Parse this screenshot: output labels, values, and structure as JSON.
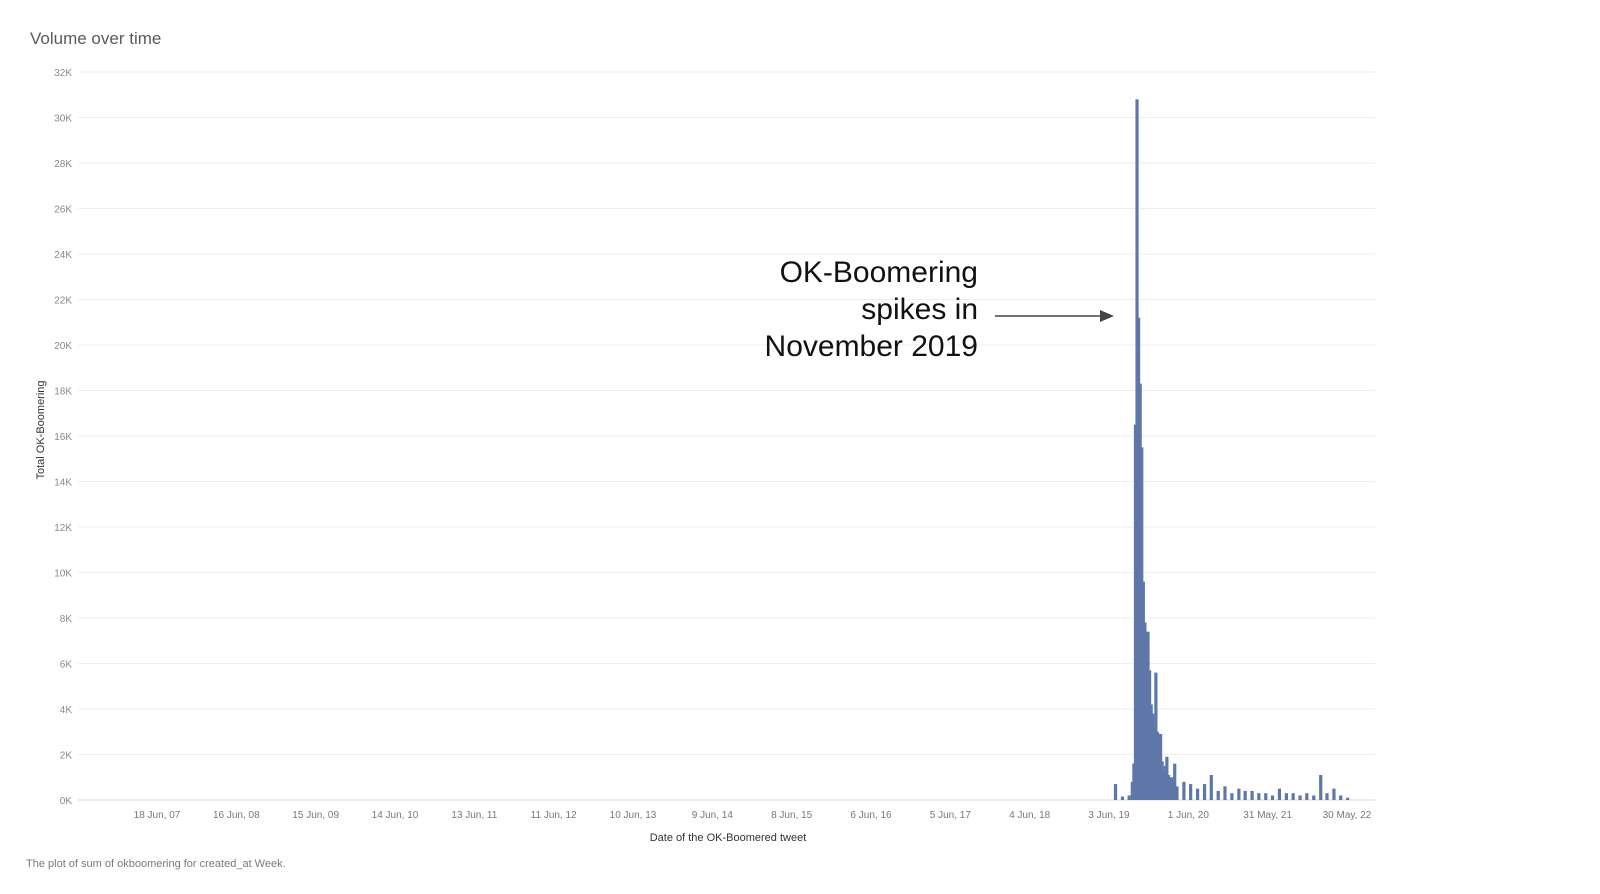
{
  "chart_data": {
    "type": "bar",
    "title": "Volume over time",
    "caption": "The plot of sum of okboomering for created_at Week.",
    "xlabel": "Date of the OK-Boomered tweet",
    "ylabel": "Total OK-Boomering",
    "ylim": [
      0,
      32000
    ],
    "grid": true,
    "bar_color": "#5e77a8",
    "y_ticks": [
      {
        "value": 0,
        "label": "0K"
      },
      {
        "value": 2000,
        "label": "2K"
      },
      {
        "value": 4000,
        "label": "4K"
      },
      {
        "value": 6000,
        "label": "6K"
      },
      {
        "value": 8000,
        "label": "8K"
      },
      {
        "value": 10000,
        "label": "10K"
      },
      {
        "value": 12000,
        "label": "12K"
      },
      {
        "value": 14000,
        "label": "14K"
      },
      {
        "value": 16000,
        "label": "16K"
      },
      {
        "value": 18000,
        "label": "18K"
      },
      {
        "value": 20000,
        "label": "20K"
      },
      {
        "value": 22000,
        "label": "22K"
      },
      {
        "value": 24000,
        "label": "24K"
      },
      {
        "value": 26000,
        "label": "26K"
      },
      {
        "value": 28000,
        "label": "28K"
      },
      {
        "value": 30000,
        "label": "30K"
      },
      {
        "value": 32000,
        "label": "32K"
      }
    ],
    "x_ticks": [
      "18 Jun, 07",
      "16 Jun, 08",
      "15 Jun, 09",
      "14 Jun, 10",
      "13 Jun, 11",
      "11 Jun, 12",
      "10 Jun, 13",
      "9 Jun, 14",
      "8 Jun, 15",
      "6 Jun, 16",
      "5 Jun, 17",
      "4 Jun, 18",
      "3 Jun, 19",
      "1 Jun, 20",
      "31 May, 21",
      "30 May, 22"
    ],
    "x_range": [
      "2006-12",
      "2022-10"
    ],
    "series": [
      {
        "x": [
          "2019-08",
          "2019-09",
          "2019-10",
          "2019-10-15",
          "2019-10-22",
          "2019-10-29",
          "2019-11-05",
          "2019-11-12",
          "2019-11-19",
          "2019-11-26",
          "2019-12-03",
          "2019-12-10",
          "2019-12-17",
          "2019-12-24",
          "2019-12-31",
          "2020-01-07",
          "2020-01-14",
          "2020-01-21",
          "2020-01-28",
          "2020-02-04",
          "2020-02-11",
          "2020-02-18",
          "2020-02-25",
          "2020-03-03",
          "2020-03-10",
          "2020-03-17",
          "2020-03-24",
          "2020-03-31",
          "2020-04-07",
          "2020-04-14",
          "2020-04-21",
          "2020-05",
          "2020-06",
          "2020-07",
          "2020-08",
          "2020-09",
          "2020-10",
          "2020-11",
          "2020-12",
          "2021-01",
          "2021-02",
          "2021-03",
          "2021-04",
          "2021-05",
          "2021-06",
          "2021-07",
          "2021-08",
          "2021-09",
          "2021-10",
          "2021-11",
          "2021-12",
          "2022-01",
          "2022-02",
          "2022-03",
          "2022-04",
          "2022-05",
          "2022-06"
        ],
        "values": [
          700,
          150,
          200,
          800,
          1600,
          16500,
          30800,
          21200,
          18300,
          15500,
          9600,
          7800,
          6600,
          7400,
          5700,
          4200,
          3800,
          3200,
          5600,
          3000,
          2800,
          2900,
          1700,
          1200,
          1500,
          1900,
          1100,
          800,
          1000,
          900,
          1600,
          600,
          800,
          700,
          500,
          700,
          1100,
          400,
          600,
          300,
          500,
          400,
          400,
          300,
          300,
          200,
          500,
          300,
          300,
          200,
          300,
          200,
          1100,
          300,
          500,
          200,
          100
        ]
      }
    ],
    "annotation": {
      "lines": [
        "OK-Boomering",
        "spikes in",
        "November 2019"
      ]
    }
  }
}
